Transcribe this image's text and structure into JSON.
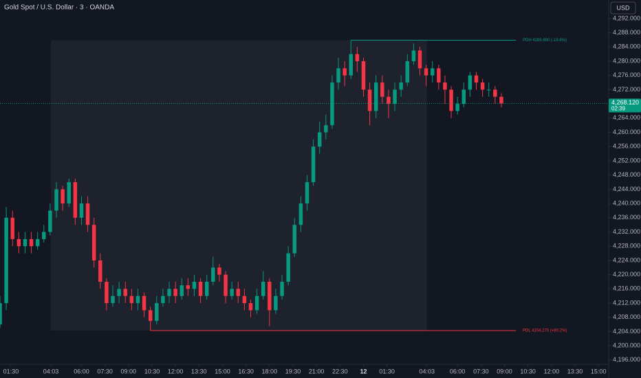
{
  "chart_data": {
    "type": "candlestick",
    "title": "Gold Spot / U.S. Dollar · 3 · OANDA",
    "currency_button": "USD",
    "up_color": "#089981",
    "down_color": "#f23645",
    "x": [
      48,
      72,
      96,
      120,
      144,
      168,
      192,
      216,
      240,
      264,
      288,
      312,
      336,
      360,
      384,
      408,
      432,
      456,
      480,
      504,
      528,
      552,
      576,
      600,
      624,
      648,
      672,
      696,
      720,
      744,
      768,
      792,
      816,
      840,
      864,
      888,
      912,
      936,
      960,
      984,
      1008,
      1032,
      1056,
      1080,
      1104,
      1128,
      1152,
      1176,
      1200,
      1224,
      1248,
      1272,
      1296,
      1320,
      1344,
      1368,
      1392,
      1416,
      1440,
      1464,
      1488,
      1512,
      1536,
      1560,
      1584,
      1608,
      1632,
      1656,
      1680,
      1704,
      1728,
      1752,
      1776,
      1800,
      1824,
      1848,
      1872,
      1896,
      1920,
      1944,
      1968
    ],
    "open": [
      4206,
      4212,
      4236,
      4230,
      4228,
      4230,
      4228,
      4230,
      4232,
      4238,
      4244,
      4240,
      4246,
      4236,
      4240,
      4234,
      4224,
      4218,
      4212,
      4214,
      4216,
      4214,
      4212,
      4214,
      4210,
      4207,
      4212,
      4214,
      4216,
      4214,
      4217,
      4216,
      4218,
      4214,
      4218,
      4222,
      4220,
      4214,
      4216,
      4214,
      4212,
      4210,
      4214,
      4218,
      4210,
      4214,
      4218,
      4226,
      4234,
      4240,
      4246,
      4256,
      4260,
      4262,
      4274,
      4278,
      4276,
      4282,
      4280,
      4272,
      4266,
      4274,
      4270,
      4268,
      4272,
      4274,
      4280,
      4283,
      4278,
      4276,
      4278,
      4274,
      4272,
      4266,
      4268,
      4272,
      4276,
      4274,
      4272,
      4272,
      4270
    ],
    "high": [
      4214,
      4239,
      4238,
      4232,
      4232,
      4232,
      4232,
      4234,
      4240,
      4246,
      4245,
      4247,
      4247,
      4242,
      4242,
      4236,
      4226,
      4219,
      4217,
      4218,
      4218,
      4216,
      4216,
      4215,
      4211,
      4214,
      4216,
      4218,
      4218,
      4219,
      4219,
      4220,
      4219,
      4220,
      4225,
      4223,
      4221,
      4218,
      4218,
      4216,
      4213,
      4216,
      4221,
      4219,
      4216,
      4220,
      4228,
      4236,
      4242,
      4248,
      4258,
      4263,
      4265,
      4276,
      4281,
      4280,
      4285.89,
      4284,
      4281,
      4274,
      4276,
      4276,
      4272,
      4274,
      4276,
      4282,
      4285,
      4284,
      4279,
      4280,
      4279,
      4276,
      4273,
      4270,
      4274,
      4277,
      4277,
      4275,
      4274,
      4273,
      4271
    ],
    "low": [
      4205,
      4210,
      4228,
      4226,
      4226,
      4226,
      4227,
      4229,
      4231,
      4236,
      4238,
      4239,
      4234,
      4234,
      4232,
      4222,
      4216,
      4210,
      4211,
      4212,
      4212,
      4210,
      4210,
      4208,
      4204.27,
      4206,
      4211,
      4212,
      4212,
      4213,
      4214,
      4214,
      4212,
      4213,
      4217,
      4218,
      4212,
      4213,
      4212,
      4210,
      4208,
      4209,
      4213,
      4205.5,
      4209,
      4213,
      4217,
      4225,
      4232,
      4238,
      4245,
      4254,
      4258,
      4261,
      4272,
      4273,
      4275,
      4277,
      4270,
      4262,
      4264,
      4268,
      4264,
      4266,
      4270,
      4273,
      4279,
      4276,
      4273,
      4274,
      4272,
      4268,
      4264,
      4265,
      4267,
      4270,
      4272,
      4270,
      4270,
      4268,
      4267
    ],
    "close": [
      4212,
      4236,
      4230,
      4228,
      4230,
      4228,
      4230,
      4232,
      4238,
      4244,
      4240,
      4246,
      4236,
      4240,
      4234,
      4224,
      4218,
      4212,
      4214,
      4216,
      4214,
      4212,
      4214,
      4210,
      4207,
      4212,
      4214,
      4216,
      4214,
      4217,
      4216,
      4218,
      4214,
      4218,
      4222,
      4220,
      4214,
      4216,
      4214,
      4212,
      4210,
      4214,
      4218,
      4210,
      4214,
      4218,
      4226,
      4234,
      4240,
      4246,
      4256,
      4260,
      4262,
      4274,
      4278,
      4276,
      4282,
      4280,
      4272,
      4266,
      4274,
      4270,
      4268,
      4272,
      4274,
      4280,
      4283,
      4278,
      4276,
      4278,
      4274,
      4272,
      4266,
      4268,
      4272,
      4276,
      4274,
      4272,
      4272,
      4270,
      4268.12
    ],
    "xlim": [
      48,
      2379
    ],
    "ylim": [
      4195.2,
      4297.2
    ],
    "xticks": [
      {
        "value": 90,
        "label": "01:30"
      },
      {
        "value": 243,
        "label": "04:03"
      },
      {
        "value": 360,
        "label": "06:00"
      },
      {
        "value": 450,
        "label": "07:30"
      },
      {
        "value": 540,
        "label": "09:00"
      },
      {
        "value": 630,
        "label": "10:30"
      },
      {
        "value": 720,
        "label": "12:00"
      },
      {
        "value": 810,
        "label": "13:30"
      },
      {
        "value": 900,
        "label": "15:00"
      },
      {
        "value": 990,
        "label": "16:30"
      },
      {
        "value": 1080,
        "label": "18:00"
      },
      {
        "value": 1170,
        "label": "19:30"
      },
      {
        "value": 1260,
        "label": "21:00"
      },
      {
        "value": 1350,
        "label": "22:30"
      },
      {
        "value": 1440,
        "label": "12"
      },
      {
        "value": 1530,
        "label": "01:30"
      },
      {
        "value": 1683,
        "label": "04:03"
      },
      {
        "value": 1800,
        "label": "06:00"
      },
      {
        "value": 1890,
        "label": "07:30"
      },
      {
        "value": 1980,
        "label": "09:00"
      },
      {
        "value": 2070,
        "label": "10:30"
      },
      {
        "value": 2160,
        "label": "12:00"
      },
      {
        "value": 2250,
        "label": "13:30"
      },
      {
        "value": 2340,
        "label": "15:00"
      }
    ],
    "yticks": [
      {
        "value": 4196,
        "label": "4,196.000"
      },
      {
        "value": 4200,
        "label": "4,200.000"
      },
      {
        "value": 4204,
        "label": "4,204.000"
      },
      {
        "value": 4208,
        "label": "4,208.000"
      },
      {
        "value": 4212,
        "label": "4,212.000"
      },
      {
        "value": 4216,
        "label": "4,216.000"
      },
      {
        "value": 4220,
        "label": "4,220.000"
      },
      {
        "value": 4224,
        "label": "4,224.000"
      },
      {
        "value": 4228,
        "label": "4,228.000"
      },
      {
        "value": 4232,
        "label": "4,232.000"
      },
      {
        "value": 4236,
        "label": "4,236.000"
      },
      {
        "value": 4240,
        "label": "4,240.000"
      },
      {
        "value": 4244,
        "label": "4,244.000"
      },
      {
        "value": 4248,
        "label": "4,248.000"
      },
      {
        "value": 4252,
        "label": "4,252.000"
      },
      {
        "value": 4256,
        "label": "4,256.000"
      },
      {
        "value": 4260,
        "label": "4,260.000"
      },
      {
        "value": 4264,
        "label": "4,264.000"
      },
      {
        "value": 4268,
        "label": "4,268.000"
      },
      {
        "value": 4272,
        "label": "4,272.000"
      },
      {
        "value": 4276,
        "label": "4,276.000"
      },
      {
        "value": 4280,
        "label": "4,280.000"
      },
      {
        "value": 4284,
        "label": "4,284.000"
      },
      {
        "value": 4288,
        "label": "4,288.000"
      },
      {
        "value": 4292,
        "label": "4,292.000"
      }
    ],
    "grid": false,
    "pdh": {
      "value": 4285.89,
      "label": "PDH 4285.890 (-19.8%)",
      "color": "#089981"
    },
    "pdl": {
      "value": 4204.27,
      "label": "PDL 4204.270 (+80.2%)",
      "color": "#f23645"
    },
    "last_price": {
      "value": 4268.12,
      "label": "4,268.120",
      "countdown": "02:39",
      "color": "#089981"
    }
  }
}
